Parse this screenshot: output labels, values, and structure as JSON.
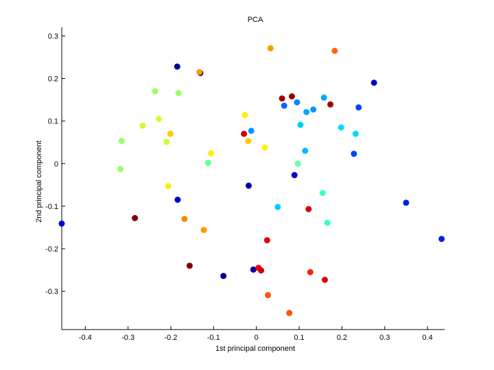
{
  "chart_data": {
    "type": "scatter",
    "title": "PCA",
    "xlabel": "1st principal component",
    "ylabel": "2nd principal component",
    "xlim": [
      -0.455,
      0.44
    ],
    "ylim": [
      -0.39,
      0.32
    ],
    "xticks": [
      -0.4,
      -0.3,
      -0.2,
      -0.1,
      0,
      0.1,
      0.2,
      0.3,
      0.4
    ],
    "xtick_labels": [
      "-0.4",
      "-0.3",
      "-0.2",
      "-0.1",
      "0",
      "0.1",
      "0.2",
      "0.3",
      "0.4"
    ],
    "yticks": [
      -0.3,
      -0.2,
      -0.1,
      0,
      0.1,
      0.2,
      0.3
    ],
    "ytick_labels": [
      "-0.3",
      "-0.2",
      "-0.1",
      "0",
      "0.1",
      "0.2",
      "0.3"
    ],
    "grid": false,
    "colormap": "jet",
    "points": [
      {
        "x": -0.455,
        "y": -0.141,
        "color": "#0000cc"
      },
      {
        "x": -0.185,
        "y": 0.228,
        "color": "#000099"
      },
      {
        "x": -0.131,
        "y": 0.213,
        "color": "#000066"
      },
      {
        "x": -0.133,
        "y": 0.215,
        "color": "#ff9900"
      },
      {
        "x": -0.237,
        "y": 0.17,
        "color": "#99ff66"
      },
      {
        "x": -0.182,
        "y": 0.166,
        "color": "#99ff66"
      },
      {
        "x": -0.228,
        "y": 0.105,
        "color": "#ccff33"
      },
      {
        "x": -0.266,
        "y": 0.089,
        "color": "#ccff33"
      },
      {
        "x": -0.201,
        "y": 0.07,
        "color": "#ffcc00"
      },
      {
        "x": -0.21,
        "y": 0.051,
        "color": "#ccff33"
      },
      {
        "x": -0.315,
        "y": 0.053,
        "color": "#99ff66"
      },
      {
        "x": -0.318,
        "y": -0.013,
        "color": "#99ff66"
      },
      {
        "x": -0.106,
        "y": 0.024,
        "color": "#ffee00"
      },
      {
        "x": -0.113,
        "y": 0.002,
        "color": "#66ff99"
      },
      {
        "x": -0.206,
        "y": -0.053,
        "color": "#ffee00"
      },
      {
        "x": -0.184,
        "y": -0.085,
        "color": "#0000cc"
      },
      {
        "x": -0.284,
        "y": -0.128,
        "color": "#800000"
      },
      {
        "x": -0.168,
        "y": -0.13,
        "color": "#ff8800"
      },
      {
        "x": -0.123,
        "y": -0.156,
        "color": "#ff9900"
      },
      {
        "x": -0.156,
        "y": -0.24,
        "color": "#800000"
      },
      {
        "x": -0.077,
        "y": -0.264,
        "color": "#000099"
      },
      {
        "x": 0.033,
        "y": 0.271,
        "color": "#ff9900"
      },
      {
        "x": 0.183,
        "y": 0.265,
        "color": "#ff6600"
      },
      {
        "x": 0.275,
        "y": 0.19,
        "color": "#0000cc"
      },
      {
        "x": 0.06,
        "y": 0.153,
        "color": "#990000"
      },
      {
        "x": 0.083,
        "y": 0.158,
        "color": "#990000"
      },
      {
        "x": 0.173,
        "y": 0.139,
        "color": "#aa0000"
      },
      {
        "x": 0.065,
        "y": 0.136,
        "color": "#0066ff"
      },
      {
        "x": 0.095,
        "y": 0.144,
        "color": "#0088ff"
      },
      {
        "x": 0.158,
        "y": 0.155,
        "color": "#00aaff"
      },
      {
        "x": 0.133,
        "y": 0.127,
        "color": "#0099ff"
      },
      {
        "x": 0.117,
        "y": 0.121,
        "color": "#00aaff"
      },
      {
        "x": 0.239,
        "y": 0.132,
        "color": "#0044ff"
      },
      {
        "x": -0.027,
        "y": 0.114,
        "color": "#ffee00"
      },
      {
        "x": -0.029,
        "y": 0.07,
        "color": "#cc0000"
      },
      {
        "x": -0.012,
        "y": 0.077,
        "color": "#0099ff"
      },
      {
        "x": -0.019,
        "y": 0.053,
        "color": "#ffcc00"
      },
      {
        "x": 0.02,
        "y": 0.038,
        "color": "#ffee00"
      },
      {
        "x": 0.103,
        "y": 0.091,
        "color": "#00ccff"
      },
      {
        "x": 0.198,
        "y": 0.085,
        "color": "#00ddff"
      },
      {
        "x": 0.232,
        "y": 0.07,
        "color": "#00ddee"
      },
      {
        "x": 0.114,
        "y": 0.03,
        "color": "#00bbff"
      },
      {
        "x": 0.097,
        "y": 0.0,
        "color": "#66ffaa"
      },
      {
        "x": 0.228,
        "y": 0.023,
        "color": "#0044ff"
      },
      {
        "x": 0.089,
        "y": -0.027,
        "color": "#0000cc"
      },
      {
        "x": -0.018,
        "y": -0.052,
        "color": "#0000aa"
      },
      {
        "x": 0.155,
        "y": -0.069,
        "color": "#44ffbb"
      },
      {
        "x": 0.05,
        "y": -0.102,
        "color": "#00ccff"
      },
      {
        "x": 0.166,
        "y": -0.139,
        "color": "#33ffcc"
      },
      {
        "x": 0.122,
        "y": -0.107,
        "color": "#dd0000"
      },
      {
        "x": 0.35,
        "y": -0.092,
        "color": "#0022dd"
      },
      {
        "x": 0.433,
        "y": -0.177,
        "color": "#0022dd"
      },
      {
        "x": 0.025,
        "y": -0.18,
        "color": "#ee0000"
      },
      {
        "x": -0.007,
        "y": -0.249,
        "color": "#000099"
      },
      {
        "x": 0.005,
        "y": -0.245,
        "color": "#ee0000"
      },
      {
        "x": 0.011,
        "y": -0.251,
        "color": "#cc0000"
      },
      {
        "x": 0.126,
        "y": -0.255,
        "color": "#ff2200"
      },
      {
        "x": 0.16,
        "y": -0.273,
        "color": "#dd0000"
      },
      {
        "x": 0.027,
        "y": -0.309,
        "color": "#ff5500"
      },
      {
        "x": 0.077,
        "y": -0.351,
        "color": "#ff5500"
      }
    ]
  }
}
